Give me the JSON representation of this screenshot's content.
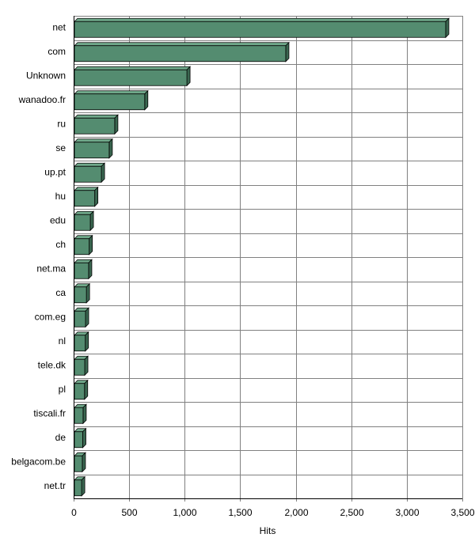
{
  "chart_data": {
    "type": "bar3d_horizontal",
    "categories": [
      "net",
      "com",
      "Unknown",
      "wanadoo.fr",
      "ru",
      "se",
      "up.pt",
      "hu",
      "edu",
      "ch",
      "net.ma",
      "ca",
      "com.eg",
      "nl",
      "tele.dk",
      "pl",
      "tiscali.fr",
      "de",
      "belgacom.be",
      "net.tr"
    ],
    "values": [
      3350,
      1910,
      1020,
      640,
      370,
      320,
      250,
      190,
      150,
      140,
      135,
      115,
      107,
      105,
      100,
      98,
      85,
      82,
      78,
      72
    ],
    "color": "#548c70",
    "xlabel": "Hits",
    "xlim": [
      0,
      3500
    ],
    "xticks": [
      0,
      500,
      {
        "value": 1000,
        "label": "1,000"
      },
      {
        "value": 1500,
        "label": "1,500"
      },
      {
        "value": 2000,
        "label": "2,000"
      },
      {
        "value": 2500,
        "label": "2,500"
      },
      {
        "value": 3000,
        "label": "3,000"
      },
      {
        "value": 3500,
        "label": "3,500"
      }
    ],
    "grid": true
  }
}
